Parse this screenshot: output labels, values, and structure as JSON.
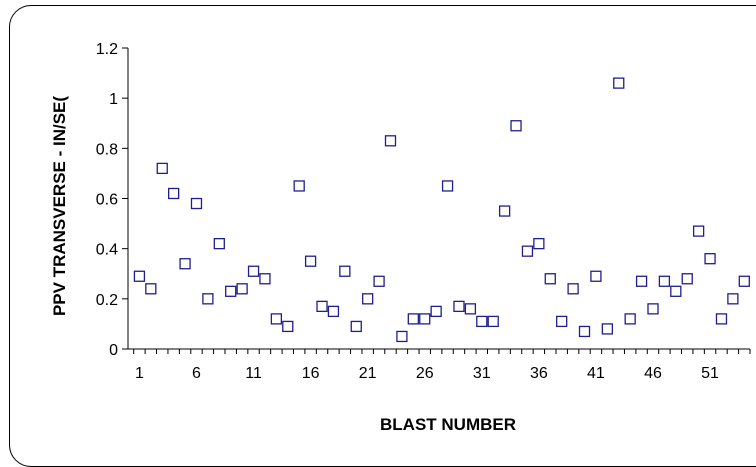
{
  "chart_data": {
    "type": "scatter",
    "title": "",
    "xlabel": "BLAST NUMBER",
    "ylabel": "PPV TRANSVERSE - IN/SE(",
    "xlim": [
      0,
      54.5
    ],
    "ylim": [
      0,
      1.2
    ],
    "x_ticks": [
      "1",
      "6",
      "11",
      "16",
      "21",
      "26",
      "31",
      "36",
      "41",
      "46",
      "51"
    ],
    "y_ticks": [
      "0",
      "0.2",
      "0.4",
      "0.6",
      "0.8",
      "1",
      "1.2"
    ],
    "grid": false,
    "legend": "none",
    "marker": "square",
    "marker_color": "#1F1F8F",
    "series": [
      {
        "x": [
          1,
          2,
          3,
          4,
          5,
          6,
          7,
          8,
          9,
          10,
          11,
          12,
          13,
          14,
          15,
          16,
          17,
          18,
          19,
          20,
          21,
          22,
          23,
          24,
          25,
          26,
          27,
          28,
          29,
          30,
          31,
          32,
          33,
          34,
          35,
          36,
          37,
          38,
          39,
          40,
          41,
          42,
          43,
          44,
          45,
          46,
          47,
          48,
          49,
          50,
          51,
          52,
          53,
          54
        ],
        "y": [
          0.29,
          0.24,
          0.72,
          0.62,
          0.34,
          0.58,
          0.2,
          0.42,
          0.23,
          0.24,
          0.31,
          0.28,
          0.12,
          0.09,
          0.65,
          0.35,
          0.17,
          0.15,
          0.31,
          0.09,
          0.2,
          0.27,
          0.83,
          0.05,
          0.12,
          0.12,
          0.15,
          0.65,
          0.17,
          0.16,
          0.11,
          0.11,
          0.55,
          0.89,
          0.39,
          0.42,
          0.28,
          0.11,
          0.24,
          0.07,
          0.29,
          0.08,
          1.06,
          0.12,
          0.27,
          0.16,
          0.27,
          0.23,
          0.28,
          0.47,
          0.36,
          0.12,
          0.2,
          0.27
        ]
      }
    ]
  }
}
